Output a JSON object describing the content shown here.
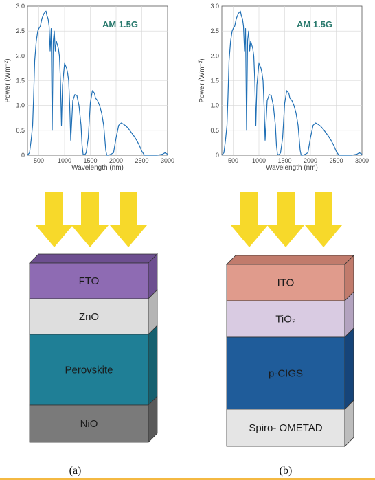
{
  "chart_data": [
    {
      "type": "line",
      "title": "AM 1.5G",
      "xlabel": "Wavelength (nm)",
      "ylabel": "Power (Wm⁻²)",
      "xlim": [
        280,
        3000
      ],
      "ylim": [
        0,
        3.0
      ],
      "xticks": [
        500,
        1000,
        1500,
        2000,
        2500,
        3000
      ],
      "yticks": [
        0,
        0.5,
        1.0,
        1.5,
        2.0,
        2.5,
        3.0
      ],
      "grid": true,
      "line_color": "#1f6fb5",
      "x": [
        280,
        320,
        350,
        380,
        400,
        420,
        450,
        480,
        500,
        530,
        560,
        600,
        640,
        660,
        680,
        700,
        720,
        740,
        760,
        780,
        800,
        820,
        840,
        880,
        900,
        920,
        940,
        960,
        1000,
        1040,
        1060,
        1080,
        1100,
        1120,
        1140,
        1160,
        1200,
        1240,
        1280,
        1320,
        1340,
        1360,
        1380,
        1400,
        1420,
        1460,
        1500,
        1540,
        1580,
        1600,
        1640,
        1680,
        1720,
        1760,
        1800,
        1820,
        1850,
        1900,
        1950,
        2000,
        2050,
        2100,
        2150,
        2200,
        2250,
        2300,
        2350,
        2400,
        2450,
        2500,
        2550,
        2600,
        2700,
        2800,
        2900,
        2950,
        3000
      ],
      "values": [
        0.0,
        0.05,
        0.3,
        0.6,
        1.2,
        1.9,
        2.3,
        2.5,
        2.55,
        2.6,
        2.75,
        2.85,
        2.9,
        2.8,
        2.75,
        2.6,
        2.1,
        2.55,
        0.5,
        2.3,
        2.5,
        2.1,
        2.3,
        2.15,
        2.0,
        1.5,
        0.6,
        1.4,
        1.85,
        1.75,
        1.65,
        1.5,
        1.0,
        0.3,
        0.7,
        1.1,
        1.22,
        1.2,
        1.0,
        0.6,
        0.2,
        0.02,
        0.01,
        0.02,
        0.05,
        0.35,
        1.05,
        1.3,
        1.25,
        1.15,
        1.1,
        1.0,
        0.85,
        0.6,
        0.1,
        0.0,
        0.0,
        0.02,
        0.05,
        0.35,
        0.6,
        0.65,
        0.62,
        0.58,
        0.52,
        0.45,
        0.38,
        0.3,
        0.2,
        0.08,
        0.0,
        0.0,
        0.0,
        0.0,
        0.02,
        0.05,
        0.02
      ]
    },
    {
      "type": "line",
      "title": "AM 1.5G",
      "xlabel": "Wavelength (nm)",
      "ylabel": "Power (Wm⁻²)",
      "xlim": [
        280,
        3000
      ],
      "ylim": [
        0,
        3.0
      ],
      "xticks": [
        500,
        1000,
        1500,
        2000,
        2500,
        3000
      ],
      "yticks": [
        0,
        0.5,
        1.0,
        1.5,
        2.0,
        2.5,
        3.0
      ],
      "grid": true,
      "line_color": "#1f6fb5",
      "x": [
        280,
        320,
        350,
        380,
        400,
        420,
        450,
        480,
        500,
        530,
        560,
        600,
        640,
        660,
        680,
        700,
        720,
        740,
        760,
        780,
        800,
        820,
        840,
        880,
        900,
        920,
        940,
        960,
        1000,
        1040,
        1060,
        1080,
        1100,
        1120,
        1140,
        1160,
        1200,
        1240,
        1280,
        1320,
        1340,
        1360,
        1380,
        1400,
        1420,
        1460,
        1500,
        1540,
        1580,
        1600,
        1640,
        1680,
        1720,
        1760,
        1800,
        1820,
        1850,
        1900,
        1950,
        2000,
        2050,
        2100,
        2150,
        2200,
        2250,
        2300,
        2350,
        2400,
        2450,
        2500,
        2550,
        2600,
        2700,
        2800,
        2900,
        2950,
        3000
      ],
      "values": [
        0.0,
        0.05,
        0.3,
        0.6,
        1.2,
        1.9,
        2.3,
        2.5,
        2.55,
        2.6,
        2.75,
        2.85,
        2.9,
        2.8,
        2.75,
        2.6,
        2.1,
        2.55,
        0.5,
        2.3,
        2.5,
        2.1,
        2.3,
        2.15,
        2.0,
        1.5,
        0.6,
        1.4,
        1.85,
        1.75,
        1.65,
        1.5,
        1.0,
        0.3,
        0.7,
        1.1,
        1.22,
        1.2,
        1.0,
        0.6,
        0.2,
        0.02,
        0.01,
        0.02,
        0.05,
        0.35,
        1.05,
        1.3,
        1.25,
        1.15,
        1.1,
        1.0,
        0.85,
        0.6,
        0.1,
        0.0,
        0.0,
        0.02,
        0.05,
        0.35,
        0.6,
        0.65,
        0.62,
        0.58,
        0.52,
        0.45,
        0.38,
        0.3,
        0.2,
        0.08,
        0.0,
        0.0,
        0.0,
        0.0,
        0.02,
        0.05,
        0.02
      ]
    }
  ],
  "arrow_color": "#f7d92a",
  "stacks": [
    {
      "caption": "(a)",
      "layers": [
        {
          "label": "FTO",
          "color": "#8e6bb3",
          "shade": "#6d4f90"
        },
        {
          "label": "ZnO",
          "color": "#dedede",
          "shade": "#b5b5b5"
        },
        {
          "label": "Perovskite",
          "color": "#1f7f96",
          "shade": "#16606f"
        },
        {
          "label": "NiO",
          "color": "#7a7a7a",
          "shade": "#5a5a5a"
        }
      ]
    },
    {
      "caption": "(b)",
      "layers": [
        {
          "label": "ITO",
          "color": "#e09b8c",
          "shade": "#c17b6c"
        },
        {
          "label": "TiO₂",
          "color": "#d9cbe2",
          "shade": "#b3a3bf"
        },
        {
          "label": "p-CIGS",
          "color": "#1f5c9a",
          "shade": "#164479"
        },
        {
          "label": "Spiro- OMETAD",
          "color": "#e5e5e5",
          "shade": "#bdbdbd"
        }
      ]
    }
  ]
}
